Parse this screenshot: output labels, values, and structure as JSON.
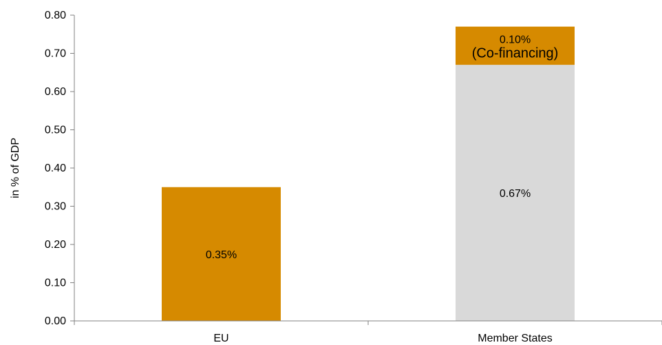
{
  "chart_data": {
    "type": "bar",
    "stacked": true,
    "categories": [
      "EU",
      "Member States"
    ],
    "ylabel": "in % of GDP",
    "ylim": [
      0,
      0.8
    ],
    "yticks": [
      "0.00",
      "0.10",
      "0.20",
      "0.30",
      "0.40",
      "0.50",
      "0.60",
      "0.70",
      "0.80"
    ],
    "grid": false,
    "series": [
      {
        "values": [
          0.35,
          0.67
        ],
        "colors": [
          "#D68A00",
          "#D9D9D9"
        ]
      },
      {
        "values": [
          0,
          0.1
        ],
        "colors": [
          "#D68A00",
          "#D68A00"
        ]
      }
    ],
    "data_labels": [
      {
        "category": "EU",
        "text": "0.35%"
      },
      {
        "category": "Member States",
        "text": "0.67%"
      },
      {
        "category": "Member States",
        "text": "0.10%",
        "subtext": "(Co-financing)"
      }
    ]
  }
}
